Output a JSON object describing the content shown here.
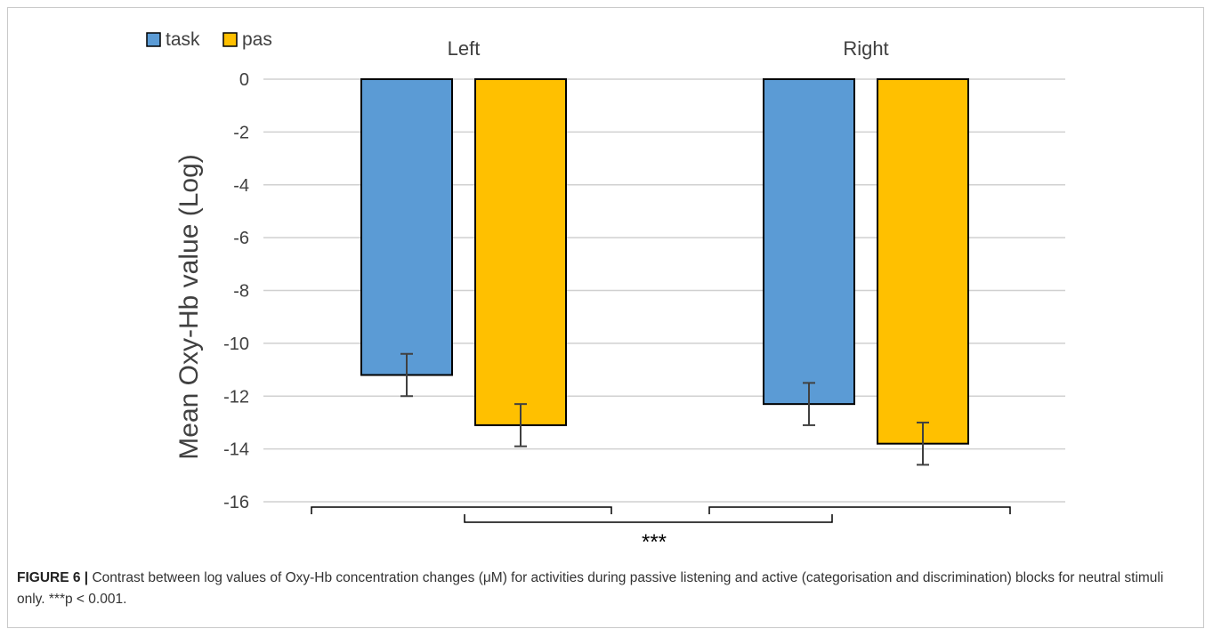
{
  "chart_data": {
    "type": "bar",
    "title": "",
    "ylabel": "Mean Oxy-Hb value (Log)",
    "xlabel": "",
    "categories": [
      "Left",
      "Right"
    ],
    "series": [
      {
        "name": "task",
        "color": "#5b9bd5",
        "values": [
          -11.2,
          -12.3
        ],
        "error": [
          0.8,
          0.8
        ]
      },
      {
        "name": "pas",
        "color": "#ffc000",
        "values": [
          -13.1,
          -13.8
        ],
        "error": [
          0.8,
          0.8
        ]
      }
    ],
    "ylim": [
      -16,
      0
    ],
    "yticks": [
      0,
      -2,
      -4,
      -6,
      -8,
      -10,
      -12,
      -14,
      -16
    ],
    "grid": true,
    "legend_position": "top-left",
    "significance_label": "***"
  },
  "caption": {
    "label": "FIGURE 6 |",
    "text": "Contrast between log values of Oxy-Hb concentration changes (μM) for activities during passive listening and active (categorisation and discrimination) blocks for neutral stimuli only. ***p < 0.001."
  }
}
